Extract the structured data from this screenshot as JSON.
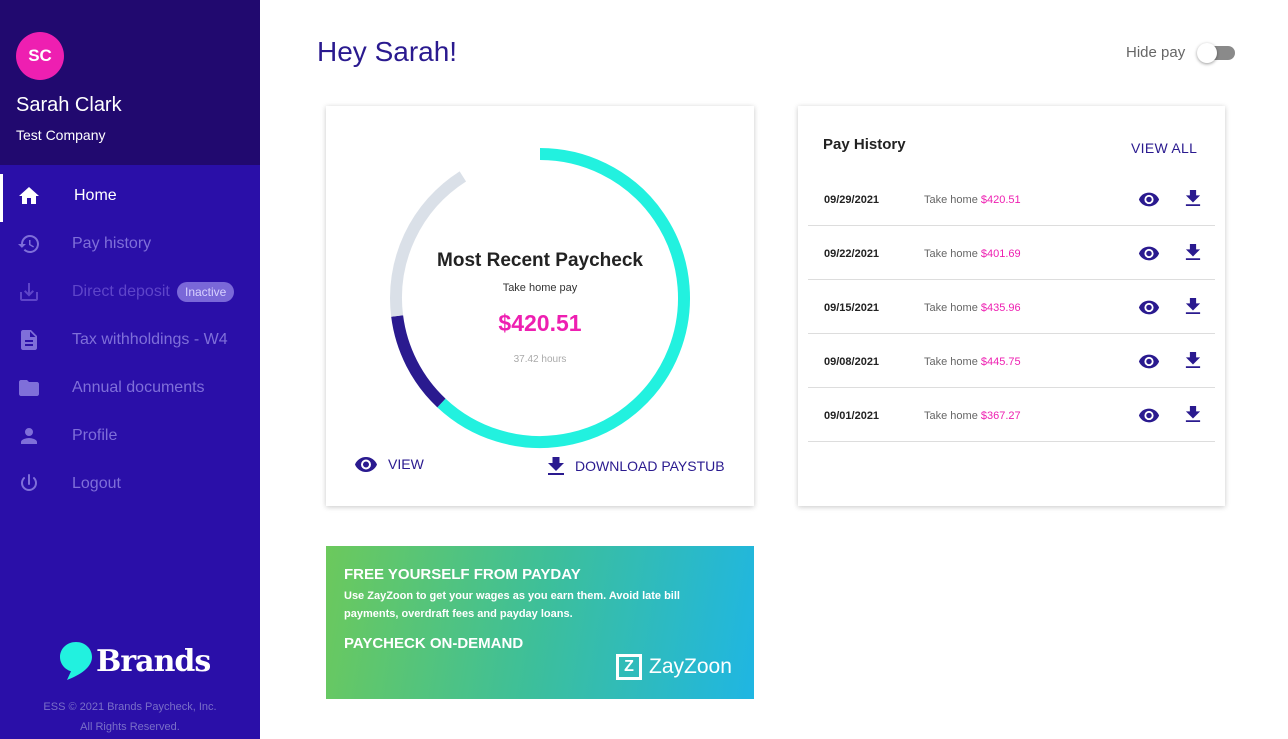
{
  "user": {
    "initials": "SC",
    "name": "Sarah Clark",
    "company": "Test Company"
  },
  "nav": [
    {
      "label": "Home",
      "icon": "home-icon",
      "state": "active"
    },
    {
      "label": "Pay history",
      "icon": "history-icon",
      "state": "normal"
    },
    {
      "label": "Direct deposit",
      "icon": "download-tray-icon",
      "state": "disabled",
      "badge": "Inactive"
    },
    {
      "label": "Tax withholdings - W4",
      "icon": "document-icon",
      "state": "normal"
    },
    {
      "label": "Annual documents",
      "icon": "folder-icon",
      "state": "normal"
    },
    {
      "label": "Profile",
      "icon": "person-icon",
      "state": "normal"
    },
    {
      "label": "Logout",
      "icon": "power-icon",
      "state": "normal"
    }
  ],
  "brand": {
    "name": "Brands",
    "footer_line1": "ESS © 2021 Brands Paycheck, Inc.",
    "footer_line2": "All Rights Reserved."
  },
  "header": {
    "greeting": "Hey Sarah!",
    "hide_pay_label": "Hide pay",
    "hide_pay_on": false
  },
  "paycheck": {
    "title": "Most Recent Paycheck",
    "subtitle": "Take home pay",
    "amount": "$420.51",
    "hours": "37.42 hours",
    "ring": {
      "take_home_fraction": 0.62,
      "dark_fraction": 0.11,
      "gray_fraction": 0.18
    },
    "view_label": "VIEW",
    "download_label": "DOWNLOAD PAYSTUB"
  },
  "pay_history": {
    "title": "Pay History",
    "view_all": "VIEW ALL",
    "take_home_label": "Take home",
    "rows": [
      {
        "date": "09/29/2021",
        "amount": "$420.51"
      },
      {
        "date": "09/22/2021",
        "amount": "$401.69"
      },
      {
        "date": "09/15/2021",
        "amount": "$435.96"
      },
      {
        "date": "09/08/2021",
        "amount": "$445.75"
      },
      {
        "date": "09/01/2021",
        "amount": "$367.27"
      }
    ]
  },
  "promo": {
    "title": "FREE YOURSELF FROM PAYDAY",
    "body": "Use ZayZoon to get your wages as you earn them. Avoid late bill payments, overdraft fees and payday loans.",
    "cta": "PAYCHECK ON-DEMAND",
    "logo_text": "ZayZoon",
    "logo_mark": "Z"
  },
  "colors": {
    "sidebar": "#2a0fa8",
    "profile_bg": "#21096f",
    "accent_pink": "#ee1fb1",
    "ring_teal": "#22f1df",
    "ring_dark": "#2a1a8f",
    "ring_gray": "#dae0e8",
    "text_navy": "#2a1a8f"
  }
}
